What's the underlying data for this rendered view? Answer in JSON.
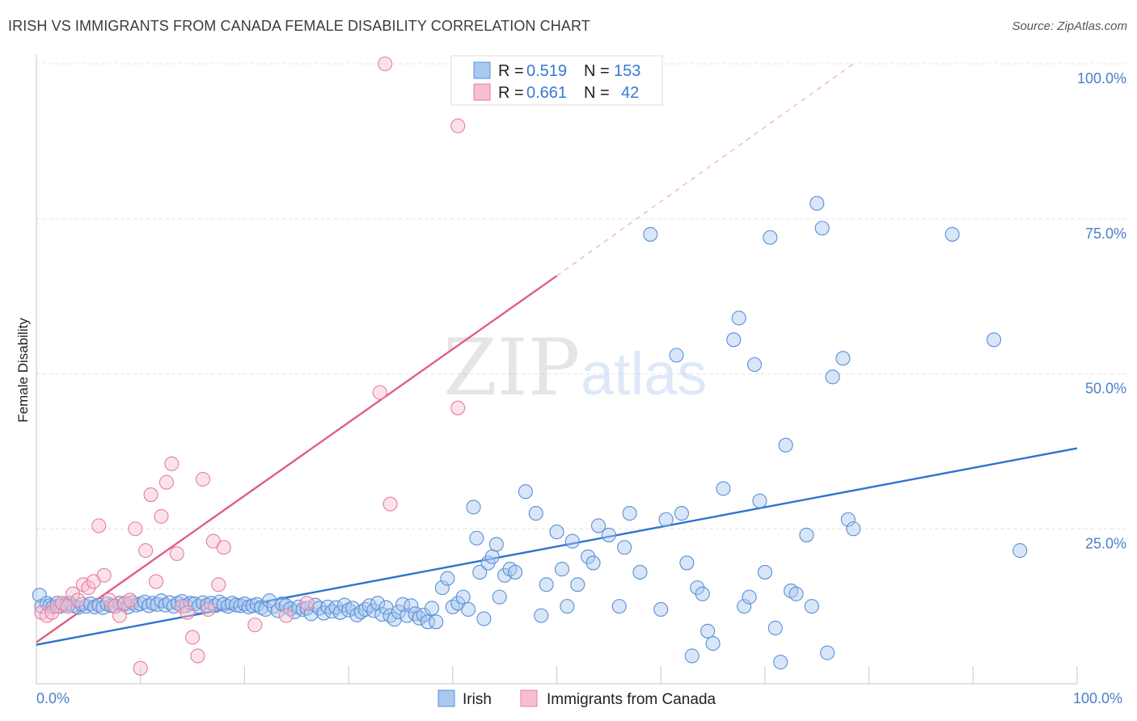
{
  "title": "IRISH VS IMMIGRANTS FROM CANADA FEMALE DISABILITY CORRELATION CHART",
  "source": "Source: ZipAtlas.com",
  "watermark": {
    "zip": "ZIP",
    "atlas": "atlas"
  },
  "chart_data": {
    "type": "scatter",
    "xlabel": "",
    "ylabel": "Female Disability",
    "xlim": [
      0,
      100
    ],
    "ylim": [
      0,
      100
    ],
    "x_tick_labels": {
      "left": "0.0%",
      "right": "100.0%"
    },
    "y_ticks": [
      {
        "value": 25,
        "label": "25.0%"
      },
      {
        "value": 50,
        "label": "50.0%"
      },
      {
        "value": 75,
        "label": "75.0%"
      },
      {
        "value": 100,
        "label": "100.0%"
      }
    ],
    "legend_top": [
      {
        "r_label": "R =",
        "r_value": "0.519",
        "n_label": "N =",
        "n_value": "153",
        "color": "#a9c8f0",
        "stroke": "#5b8fd6"
      },
      {
        "r_label": "R =",
        "r_value": "0.661",
        "n_label": "N =",
        "n_value": "42",
        "color": "#f6bfd0",
        "stroke": "#e67ea0"
      }
    ],
    "series": [
      {
        "name": "Irish",
        "color": "#a9c8f0",
        "stroke": "#5b8fd6",
        "trend": {
          "x0": 0,
          "y0": 6.3,
          "x1": 100,
          "y1": 38.0,
          "color": "#2f74d0"
        },
        "points": [
          [
            0.3,
            14.3
          ],
          [
            0.5,
            12.5
          ],
          [
            1,
            13
          ],
          [
            1.3,
            12.6
          ],
          [
            1.6,
            12.4
          ],
          [
            2,
            13
          ],
          [
            2.3,
            12.5
          ],
          [
            2.8,
            12.8
          ],
          [
            3.2,
            13
          ],
          [
            3.5,
            12.6
          ],
          [
            4,
            12.3
          ],
          [
            4.4,
            12.8
          ],
          [
            4.8,
            12.5
          ],
          [
            5.2,
            12.9
          ],
          [
            5.6,
            12.4
          ],
          [
            6,
            12.7
          ],
          [
            6.4,
            12.3
          ],
          [
            6.8,
            12.9
          ],
          [
            7.2,
            12.6
          ],
          [
            7.6,
            12.5
          ],
          [
            8,
            13
          ],
          [
            8.4,
            12.8
          ],
          [
            8.8,
            12.4
          ],
          [
            9.2,
            13.1
          ],
          [
            9.6,
            12.7
          ],
          [
            10,
            12.9
          ],
          [
            10.4,
            13.2
          ],
          [
            10.8,
            12.6
          ],
          [
            11.2,
            13
          ],
          [
            11.6,
            12.8
          ],
          [
            12,
            13.4
          ],
          [
            12.4,
            12.7
          ],
          [
            12.8,
            13.1
          ],
          [
            13.2,
            12.5
          ],
          [
            13.6,
            13
          ],
          [
            14,
            13.3
          ],
          [
            14.4,
            12.6
          ],
          [
            14.8,
            13
          ],
          [
            15.2,
            12.9
          ],
          [
            15.6,
            12.5
          ],
          [
            16,
            13.1
          ],
          [
            16.4,
            12.7
          ],
          [
            16.8,
            13
          ],
          [
            17.2,
            12.6
          ],
          [
            17.6,
            13.2
          ],
          [
            18,
            12.8
          ],
          [
            18.4,
            12.5
          ],
          [
            18.8,
            13
          ],
          [
            19.2,
            12.7
          ],
          [
            19.6,
            12.6
          ],
          [
            20,
            12.9
          ],
          [
            20.4,
            12.4
          ],
          [
            20.8,
            12.6
          ],
          [
            21.2,
            12.8
          ],
          [
            21.6,
            12.3
          ],
          [
            22,
            12
          ],
          [
            22.4,
            13.4
          ],
          [
            22.8,
            12.5
          ],
          [
            23.2,
            11.8
          ],
          [
            23.6,
            12.9
          ],
          [
            24,
            12.6
          ],
          [
            24.4,
            12.1
          ],
          [
            24.8,
            11.6
          ],
          [
            25.2,
            12.4
          ],
          [
            25.6,
            12
          ],
          [
            26,
            12.2
          ],
          [
            26.4,
            11.3
          ],
          [
            26.8,
            12.7
          ],
          [
            27.2,
            12.2
          ],
          [
            27.6,
            11.4
          ],
          [
            28,
            12.4
          ],
          [
            28.4,
            11.7
          ],
          [
            28.8,
            12.3
          ],
          [
            29.2,
            11.5
          ],
          [
            29.6,
            12.7
          ],
          [
            30,
            11.9
          ],
          [
            30.4,
            12.2
          ],
          [
            30.8,
            11.1
          ],
          [
            31.2,
            11.6
          ],
          [
            31.6,
            12
          ],
          [
            32,
            12.6
          ],
          [
            32.4,
            11.8
          ],
          [
            32.8,
            13
          ],
          [
            33.2,
            11.2
          ],
          [
            33.6,
            12.3
          ],
          [
            34,
            11
          ],
          [
            34.4,
            10.4
          ],
          [
            34.8,
            11.6
          ],
          [
            35.2,
            12.8
          ],
          [
            35.6,
            11
          ],
          [
            36,
            12.6
          ],
          [
            36.4,
            11.3
          ],
          [
            36.8,
            10.6
          ],
          [
            37.2,
            11.1
          ],
          [
            37.6,
            10
          ],
          [
            38,
            12.2
          ],
          [
            38.4,
            10
          ],
          [
            39,
            15.5
          ],
          [
            39.5,
            17
          ],
          [
            40,
            12.4
          ],
          [
            40.5,
            13
          ],
          [
            41,
            14
          ],
          [
            41.5,
            12
          ],
          [
            42,
            28.5
          ],
          [
            42.3,
            23.5
          ],
          [
            42.6,
            18
          ],
          [
            43,
            10.5
          ],
          [
            43.4,
            19.5
          ],
          [
            43.8,
            20.5
          ],
          [
            44.2,
            22.5
          ],
          [
            44.5,
            14
          ],
          [
            45,
            17.5
          ],
          [
            45.5,
            18.5
          ],
          [
            46,
            18
          ],
          [
            47,
            31
          ],
          [
            48,
            27.5
          ],
          [
            48.5,
            11
          ],
          [
            49,
            16
          ],
          [
            50,
            24.5
          ],
          [
            50.5,
            18.5
          ],
          [
            51,
            12.5
          ],
          [
            51.5,
            23
          ],
          [
            52,
            16
          ],
          [
            53,
            20.5
          ],
          [
            53.5,
            19.5
          ],
          [
            54,
            25.5
          ],
          [
            55,
            24
          ],
          [
            56,
            12.5
          ],
          [
            56.5,
            22
          ],
          [
            57,
            27.5
          ],
          [
            58,
            18
          ],
          [
            59,
            72.5
          ],
          [
            60,
            12
          ],
          [
            60.5,
            26.5
          ],
          [
            61.5,
            53
          ],
          [
            62,
            27.5
          ],
          [
            62.5,
            19.5
          ],
          [
            63,
            4.5
          ],
          [
            63.5,
            15.5
          ],
          [
            64,
            14.5
          ],
          [
            64.5,
            8.5
          ],
          [
            65,
            6.5
          ],
          [
            66,
            31.5
          ],
          [
            67,
            55.5
          ],
          [
            67.5,
            59
          ],
          [
            68,
            12.5
          ],
          [
            68.5,
            14
          ],
          [
            69,
            51.5
          ],
          [
            69.5,
            29.5
          ],
          [
            70,
            18
          ],
          [
            70.5,
            72
          ],
          [
            71,
            9
          ],
          [
            71.5,
            3.5
          ],
          [
            72,
            38.5
          ],
          [
            72.5,
            15
          ],
          [
            73,
            14.5
          ],
          [
            74,
            24
          ],
          [
            74.5,
            12.5
          ],
          [
            75,
            77.5
          ],
          [
            75.5,
            73.5
          ],
          [
            76,
            5
          ],
          [
            76.5,
            49.5
          ],
          [
            77.5,
            52.5
          ],
          [
            78,
            26.5
          ],
          [
            78.5,
            25
          ],
          [
            88,
            72.5
          ],
          [
            92,
            55.5
          ],
          [
            94.5,
            21.5
          ]
        ]
      },
      {
        "name": "Immigrants from Canada",
        "color": "#f6bfd0",
        "stroke": "#e67ea0",
        "trend": {
          "x0": 0,
          "y0": 6.7,
          "x1": 50,
          "y1": 65.8,
          "color": "#e0607f",
          "dash_to": {
            "x": 78.5,
            "y": 100
          }
        },
        "points": [
          [
            0.5,
            11.5
          ],
          [
            1,
            11
          ],
          [
            1.5,
            11.5
          ],
          [
            2,
            12.5
          ],
          [
            2.5,
            13
          ],
          [
            3,
            12.5
          ],
          [
            3.5,
            14.5
          ],
          [
            4,
            13.5
          ],
          [
            4.5,
            16
          ],
          [
            5,
            15.5
          ],
          [
            5.5,
            16.5
          ],
          [
            6,
            25.5
          ],
          [
            6.5,
            17.5
          ],
          [
            7,
            13.5
          ],
          [
            7.5,
            12.5
          ],
          [
            8,
            11
          ],
          [
            8.5,
            13
          ],
          [
            9,
            13.5
          ],
          [
            9.5,
            25
          ],
          [
            10,
            2.5
          ],
          [
            10.5,
            21.5
          ],
          [
            11,
            30.5
          ],
          [
            11.5,
            16.5
          ],
          [
            12,
            27
          ],
          [
            12.5,
            32.5
          ],
          [
            13,
            35.5
          ],
          [
            13.5,
            21
          ],
          [
            14,
            12.5
          ],
          [
            14.5,
            11.5
          ],
          [
            15,
            7.5
          ],
          [
            15.5,
            4.5
          ],
          [
            16,
            33
          ],
          [
            16.5,
            12
          ],
          [
            17,
            23
          ],
          [
            17.5,
            16
          ],
          [
            18,
            22
          ],
          [
            21,
            9.5
          ],
          [
            24,
            11
          ],
          [
            26,
            13
          ],
          [
            33,
            47
          ],
          [
            34,
            29
          ],
          [
            40.5,
            44.5
          ],
          [
            33.5,
            100
          ],
          [
            40.5,
            90
          ]
        ]
      }
    ]
  }
}
